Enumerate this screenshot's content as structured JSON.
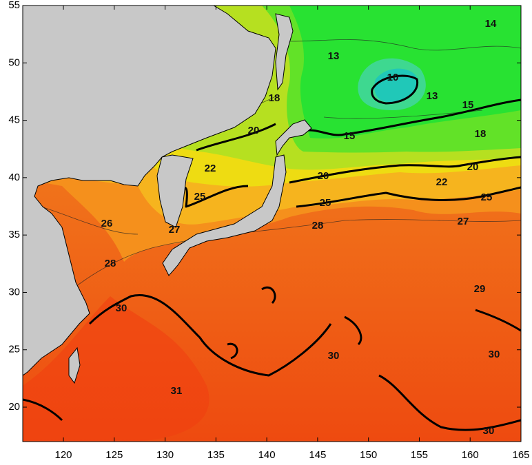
{
  "map": {
    "xlim": [
      116,
      165
    ],
    "ylim": [
      17,
      55
    ],
    "xticks": [
      120,
      125,
      130,
      135,
      140,
      145,
      150,
      155,
      160,
      165
    ],
    "yticks": [
      20,
      25,
      30,
      35,
      40,
      45,
      50,
      55
    ],
    "contour_labels": [
      10,
      13,
      13,
      14,
      15,
      15,
      18,
      18,
      20,
      20,
      20,
      22,
      22,
      25,
      25,
      25,
      26,
      27,
      27,
      28,
      28,
      29,
      30,
      30,
      30,
      30,
      31
    ]
  }
}
